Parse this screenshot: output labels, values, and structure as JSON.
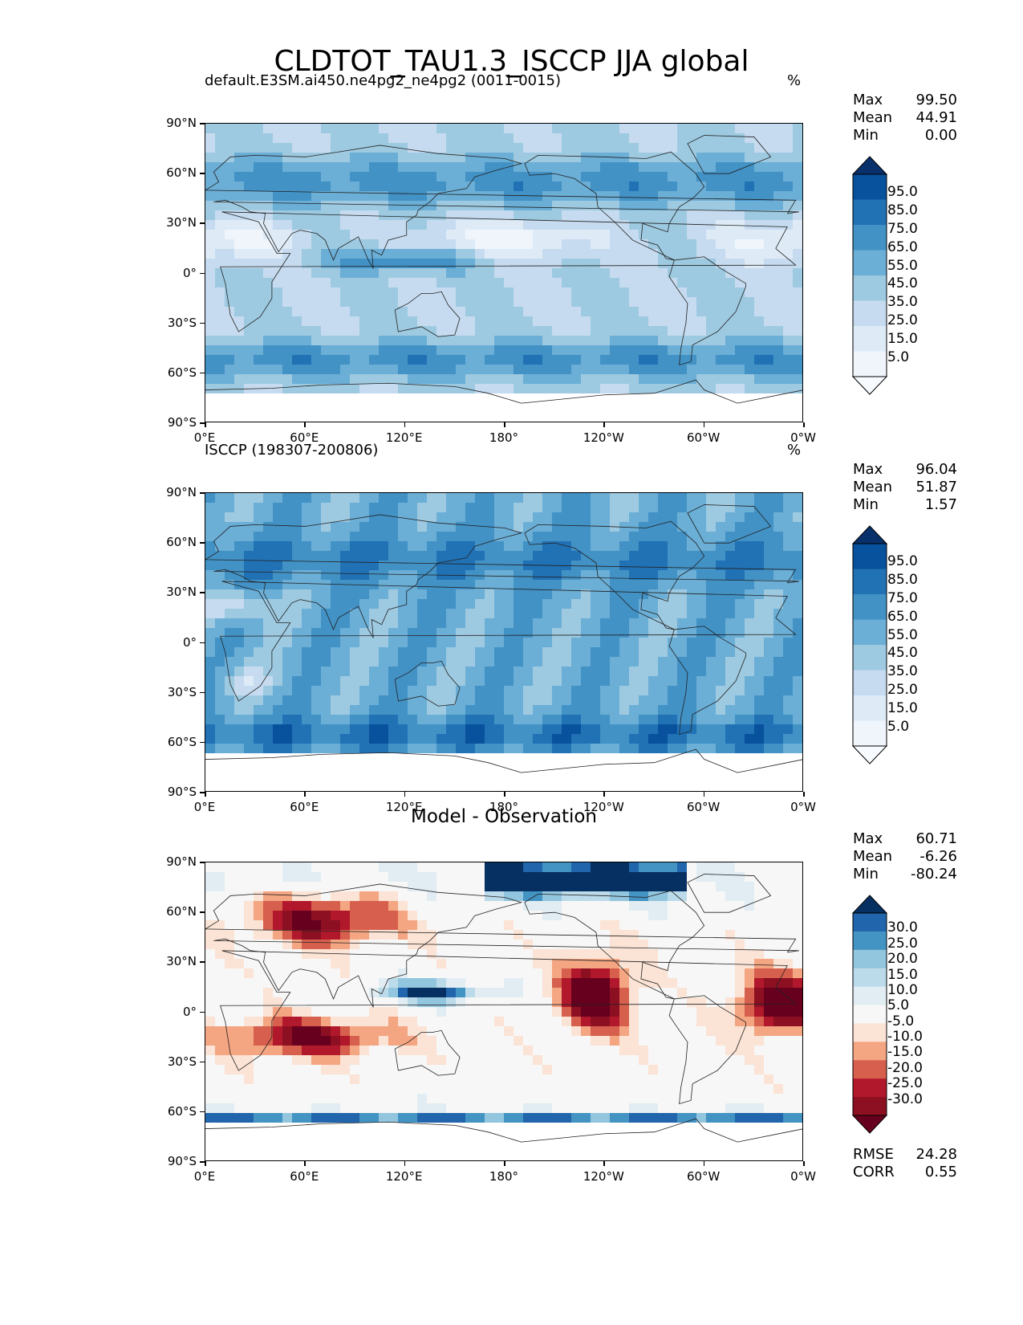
{
  "figure": {
    "title": "CLDTOT_TAU1.3_ISCCP JJA global"
  },
  "axes": {
    "lat_ticks": [
      "90°N",
      "60°N",
      "30°N",
      "0°",
      "30°S",
      "60°S",
      "90°S"
    ],
    "lon_ticks": [
      "0°E",
      "60°E",
      "120°E",
      "180°",
      "120°W",
      "60°W",
      "0°W"
    ]
  },
  "panels": [
    {
      "title_left": "default.E3SM.ai450.ne4pg2_ne4pg2 (0011-0015)",
      "title_center": "",
      "units": "%",
      "stats": [
        {
          "label": "Max",
          "value": "99.50"
        },
        {
          "label": "Mean",
          "value": "44.91"
        },
        {
          "label": "Min",
          "value": "0.00"
        }
      ],
      "colorbar": {
        "labels": [
          "95.0",
          "85.0",
          "75.0",
          "65.0",
          "55.0",
          "45.0",
          "35.0",
          "25.0",
          "15.0",
          "5.0"
        ],
        "colors": [
          "#08306b",
          "#08519c",
          "#2171b5",
          "#4292c6",
          "#6baed6",
          "#9ecae1",
          "#c6dbef",
          "#deebf7",
          "#eff5fb",
          "#f7fbff"
        ]
      },
      "extra_stats": []
    },
    {
      "title_left": "ISCCP (198307-200806)",
      "title_center": "",
      "units": "%",
      "stats": [
        {
          "label": "Max",
          "value": "96.04"
        },
        {
          "label": "Mean",
          "value": "51.87"
        },
        {
          "label": "Min",
          "value": "1.57"
        }
      ],
      "colorbar": {
        "labels": [
          "95.0",
          "85.0",
          "75.0",
          "65.0",
          "55.0",
          "45.0",
          "35.0",
          "25.0",
          "15.0",
          "5.0"
        ],
        "colors": [
          "#08306b",
          "#08519c",
          "#2171b5",
          "#4292c6",
          "#6baed6",
          "#9ecae1",
          "#c6dbef",
          "#deebf7",
          "#eff5fb",
          "#f7fbff"
        ]
      },
      "extra_stats": []
    },
    {
      "title_left": "",
      "title_center": "Model - Observation",
      "units": "",
      "stats": [
        {
          "label": "Max",
          "value": "60.71"
        },
        {
          "label": "Mean",
          "value": "-6.26"
        },
        {
          "label": "Min",
          "value": "-80.24"
        }
      ],
      "colorbar": {
        "labels": [
          "30.0",
          "25.0",
          "20.0",
          "15.0",
          "10.0",
          "5.0",
          "-5.0",
          "-10.0",
          "-15.0",
          "-20.0",
          "-25.0",
          "-30.0"
        ],
        "colors": [
          "#053061",
          "#2166ac",
          "#4393c3",
          "#92c5de",
          "#bcdbea",
          "#e1edf3",
          "#f7f7f7",
          "#fbe3d5",
          "#f4a582",
          "#d6604d",
          "#b2182b",
          "#8c1022",
          "#67001f"
        ]
      },
      "extra_stats": [
        {
          "label": "RMSE",
          "value": "24.28"
        },
        {
          "label": "CORR",
          "value": "0.55"
        }
      ]
    }
  ]
}
